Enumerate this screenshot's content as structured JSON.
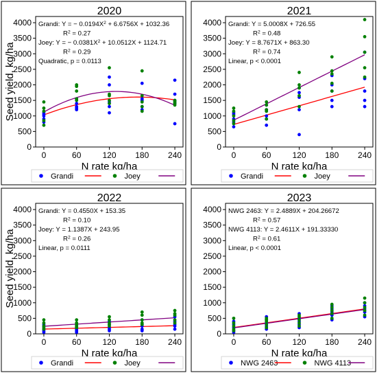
{
  "chart_data": [
    {
      "type": "scatter",
      "title": "2020",
      "xlabel": "N rate kg/ha",
      "ylabel": "Seed yield, kg/ha",
      "xticks": [
        "0",
        "60",
        "120",
        "180",
        "240"
      ],
      "yticks": [
        "0",
        "500",
        "1000",
        "1500",
        "2000",
        "2500",
        "3000",
        "3500",
        "4000"
      ],
      "xlim": [
        -15,
        255
      ],
      "ylim": [
        0,
        4200
      ],
      "annotations": [
        {
          "text": "Grandi: Y = − 0.0194X² + 6.6756X + 1032.36"
        },
        {
          "text": "R² = 0.27",
          "indent": true
        },
        {
          "text": "Joey: Y = − 0.0381X² + 10.0512X + 1124.71"
        },
        {
          "text": "R² = 0.29",
          "indent": true
        },
        {
          "text": "Quadratic, p = 0.0113"
        }
      ],
      "legend": [
        "Grandi",
        "Joey"
      ],
      "series": [
        {
          "name": "Grandi",
          "color": "#0000ff",
          "x": [
            0,
            0,
            0,
            0,
            0,
            60,
            60,
            60,
            60,
            60,
            120,
            120,
            120,
            120,
            120,
            180,
            180,
            180,
            180,
            180,
            240,
            240,
            240,
            240,
            240
          ],
          "y": [
            1100,
            1050,
            900,
            800,
            1000,
            1200,
            1300,
            1400,
            1550,
            1250,
            1100,
            1450,
            2000,
            2250,
            1300,
            1200,
            1300,
            1500,
            1550,
            2050,
            750,
            1400,
            1500,
            1700,
            2150
          ]
        },
        {
          "name": "Joey",
          "color": "#008000",
          "x": [
            0,
            0,
            0,
            0,
            0,
            60,
            60,
            60,
            60,
            60,
            120,
            120,
            120,
            120,
            120,
            180,
            180,
            180,
            180,
            180,
            240,
            240,
            240,
            240,
            240
          ],
          "y": [
            1450,
            1250,
            1150,
            850,
            700,
            1550,
            1800,
            1950,
            2000,
            1500,
            1500,
            1700,
            1650,
            2550,
            1400,
            1150,
            1300,
            1450,
            1650,
            2450,
            1350,
            1450,
            1500,
            1450,
            1400
          ]
        }
      ],
      "fits": [
        {
          "name": "Grandi",
          "color": "#ff0000",
          "kind": "quadratic",
          "coef": [
            1032.36,
            6.6756,
            -0.0194
          ]
        },
        {
          "name": "Joey",
          "color": "#800080",
          "kind": "quadratic",
          "coef": [
            1124.71,
            10.0512,
            -0.0381
          ]
        }
      ]
    },
    {
      "type": "scatter",
      "title": "2021",
      "xlabel": "N rate kg/ha",
      "ylabel": "",
      "xticks": [
        "0",
        "60",
        "120",
        "180",
        "240"
      ],
      "yticks": [
        "0",
        "500",
        "1000",
        "1500",
        "2000",
        "2500",
        "3000",
        "3500",
        "4000"
      ],
      "xlim": [
        -15,
        255
      ],
      "ylim": [
        0,
        4200
      ],
      "annotations": [
        {
          "text": "Grandi: Y = 5.0008X + 726.55"
        },
        {
          "text": "R² = 0.48",
          "indent": true
        },
        {
          "text": "Joey: Y = 8.7671X + 863.30"
        },
        {
          "text": "R² = 0.74",
          "indent": true
        },
        {
          "text": "Linear, p < 0.0001"
        }
      ],
      "legend": [
        "Grandi",
        "Joey"
      ],
      "series": [
        {
          "name": "Grandi",
          "color": "#0000ff",
          "x": [
            0,
            0,
            0,
            0,
            0,
            60,
            60,
            60,
            60,
            60,
            120,
            120,
            120,
            120,
            120,
            180,
            180,
            180,
            180,
            180,
            240,
            240,
            240,
            240,
            240
          ],
          "y": [
            650,
            800,
            900,
            1050,
            1100,
            700,
            900,
            1000,
            1200,
            1350,
            400,
            1200,
            1600,
            1750,
            1900,
            1300,
            1500,
            1800,
            2000,
            2300,
            1300,
            1500,
            1800,
            2200,
            3050
          ]
        },
        {
          "name": "Joey",
          "color": "#008000",
          "x": [
            0,
            0,
            0,
            0,
            0,
            60,
            60,
            60,
            60,
            60,
            120,
            120,
            120,
            120,
            120,
            180,
            180,
            180,
            180,
            180,
            240,
            240,
            240,
            240,
            240
          ],
          "y": [
            750,
            850,
            1000,
            1150,
            1250,
            900,
            1150,
            1200,
            1350,
            1450,
            1300,
            1650,
            1900,
            2000,
            2400,
            1800,
            2050,
            2350,
            2450,
            2900,
            2250,
            2550,
            3050,
            3550,
            4100
          ]
        }
      ],
      "fits": [
        {
          "name": "Grandi",
          "color": "#ff0000",
          "kind": "linear",
          "coef": [
            726.55,
            5.0008
          ]
        },
        {
          "name": "Joey",
          "color": "#800080",
          "kind": "linear",
          "coef": [
            863.3,
            8.7671
          ]
        }
      ]
    },
    {
      "type": "scatter",
      "title": "2022",
      "xlabel": "N rate kg/ha",
      "ylabel": "Seed yield, kg/ha",
      "xticks": [
        "0",
        "60",
        "120",
        "180",
        "240"
      ],
      "yticks": [
        "0",
        "500",
        "1000",
        "1500",
        "2000",
        "2500",
        "3000",
        "3500",
        "4000"
      ],
      "xlim": [
        -15,
        255
      ],
      "ylim": [
        0,
        4200
      ],
      "annotations": [
        {
          "text": "Grandi: Y = 0.4550X + 153.35"
        },
        {
          "text": "R² = 0.10",
          "indent": true
        },
        {
          "text": "Joey: Y = 1.1387X + 243.95"
        },
        {
          "text": "R² = 0.26",
          "indent": true
        },
        {
          "text": "Linear, p = 0.0111"
        }
      ],
      "legend": [
        "Grandi",
        "Joey"
      ],
      "series": [
        {
          "name": "Grandi",
          "color": "#0000ff",
          "x": [
            0,
            0,
            0,
            0,
            0,
            60,
            60,
            60,
            60,
            60,
            120,
            120,
            120,
            120,
            120,
            180,
            180,
            180,
            180,
            180,
            240,
            240,
            240,
            240,
            240
          ],
          "y": [
            50,
            100,
            150,
            250,
            300,
            50,
            100,
            150,
            200,
            250,
            100,
            150,
            200,
            300,
            400,
            100,
            150,
            250,
            300,
            450,
            150,
            250,
            300,
            400,
            550
          ]
        },
        {
          "name": "Joey",
          "color": "#008000",
          "x": [
            0,
            0,
            0,
            0,
            0,
            60,
            60,
            60,
            60,
            60,
            120,
            120,
            120,
            120,
            120,
            180,
            180,
            180,
            180,
            180,
            240,
            240,
            240,
            240,
            240
          ],
          "y": [
            150,
            200,
            250,
            350,
            450,
            200,
            250,
            300,
            350,
            450,
            250,
            300,
            350,
            450,
            550,
            300,
            350,
            450,
            600,
            700,
            350,
            450,
            600,
            650,
            750
          ]
        }
      ],
      "fits": [
        {
          "name": "Grandi",
          "color": "#ff0000",
          "kind": "linear",
          "coef": [
            153.35,
            0.455
          ]
        },
        {
          "name": "Joey",
          "color": "#800080",
          "kind": "linear",
          "coef": [
            243.95,
            1.1387
          ]
        }
      ]
    },
    {
      "type": "scatter",
      "title": "2023",
      "xlabel": "N rate kg/ha",
      "ylabel": "",
      "xticks": [
        "0",
        "60",
        "120",
        "180",
        "240"
      ],
      "yticks": [
        "0",
        "500",
        "1000",
        "1500",
        "2000",
        "2500",
        "3000",
        "3500",
        "4000"
      ],
      "xlim": [
        -15,
        255
      ],
      "ylim": [
        0,
        4200
      ],
      "annotations": [
        {
          "text": "NWG 2463: Y = 2.4889X + 204.26672"
        },
        {
          "text": "R² = 0.57",
          "indent": true
        },
        {
          "text": "NWG 4113: Y = 2.4611X + 191.33330"
        },
        {
          "text": "R² = 0.61",
          "indent": true
        },
        {
          "text": "Linear, p < 0.0001"
        }
      ],
      "legend": [
        "NWG 2463",
        "NWG 4113"
      ],
      "series": [
        {
          "name": "NWG 2463",
          "color": "#0000ff",
          "x": [
            0,
            0,
            0,
            0,
            0,
            60,
            60,
            60,
            60,
            60,
            120,
            120,
            120,
            120,
            120,
            180,
            180,
            180,
            180,
            180,
            240,
            240,
            240,
            240,
            240
          ],
          "y": [
            50,
            100,
            200,
            300,
            400,
            150,
            250,
            350,
            450,
            550,
            200,
            300,
            400,
            500,
            650,
            450,
            600,
            700,
            800,
            900,
            550,
            700,
            800,
            900,
            1000
          ]
        },
        {
          "name": "NWG 4113",
          "color": "#008000",
          "x": [
            0,
            0,
            0,
            0,
            0,
            60,
            60,
            60,
            60,
            60,
            120,
            120,
            120,
            120,
            120,
            180,
            180,
            180,
            180,
            180,
            240,
            240,
            240,
            240,
            240
          ],
          "y": [
            100,
            150,
            250,
            350,
            500,
            200,
            300,
            400,
            450,
            500,
            250,
            350,
            450,
            550,
            600,
            500,
            650,
            750,
            850,
            950,
            600,
            750,
            850,
            1000,
            1150
          ]
        }
      ],
      "fits": [
        {
          "name": "NWG 2463",
          "color": "#ff0000",
          "kind": "linear",
          "coef": [
            204.26672,
            2.4889
          ]
        },
        {
          "name": "NWG 4113",
          "color": "#800080",
          "kind": "linear",
          "coef": [
            191.3333,
            2.4611
          ]
        }
      ]
    }
  ]
}
